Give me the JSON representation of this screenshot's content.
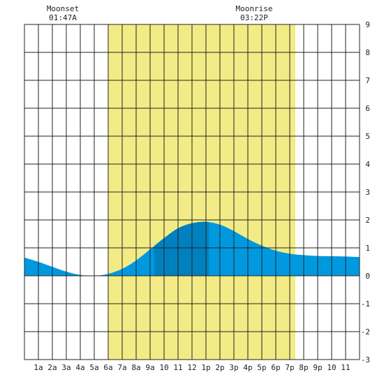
{
  "moon": {
    "moonset_label": "Moonset",
    "moonset_time": "01:47A",
    "moonrise_label": "Moonrise",
    "moonrise_time": "03:22P"
  },
  "colors": {
    "daylight": "#f3ec86",
    "tide_past": "#0080bf",
    "tide_main": "#0099e0",
    "grid": "#222222",
    "background": "#ffffff"
  },
  "chart_data": {
    "type": "area",
    "x_tick_labels": [
      "1a",
      "2a",
      "3a",
      "4a",
      "5a",
      "6a",
      "7a",
      "8a",
      "9a",
      "10",
      "11",
      "12",
      "1p",
      "2p",
      "3p",
      "4p",
      "5p",
      "6p",
      "7p",
      "8p",
      "9p",
      "10",
      "11"
    ],
    "x_range_hours": [
      0,
      24
    ],
    "y_ticks": [
      9,
      8,
      7,
      6,
      5,
      4,
      3,
      2,
      1,
      0,
      -1,
      -2,
      -3
    ],
    "ylim": [
      -3,
      9
    ],
    "grid": true,
    "daylight_span_hours": [
      6.0,
      19.4
    ],
    "highlight_span_hours": [
      9.3,
      13.2
    ],
    "moonset_hour": 1.78,
    "moonrise_hour": 15.37,
    "series": [
      {
        "x": [
          0,
          1,
          2,
          3,
          4,
          5,
          6,
          7,
          8,
          9,
          10,
          11,
          12,
          13,
          14,
          15,
          16,
          17,
          18,
          19,
          20,
          21,
          22,
          23,
          24
        ],
        "values": [
          0.65,
          0.5,
          0.32,
          0.15,
          0.03,
          0.0,
          0.07,
          0.25,
          0.55,
          0.95,
          1.35,
          1.7,
          1.88,
          1.93,
          1.83,
          1.6,
          1.32,
          1.08,
          0.9,
          0.79,
          0.74,
          0.71,
          0.7,
          0.69,
          0.67
        ]
      }
    ]
  }
}
